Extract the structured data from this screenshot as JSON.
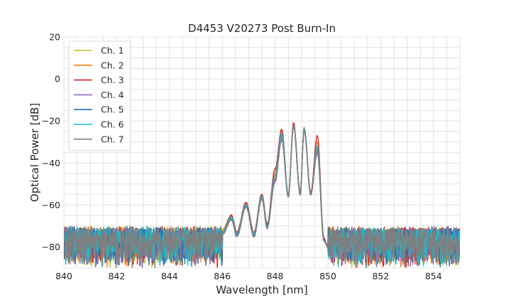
{
  "chart_data": {
    "type": "line",
    "title": "D4453 V20273 Post Burn-In",
    "xlabel": "Wavelength [nm]",
    "ylabel": "Optical Power [dB]",
    "xlim": [
      840,
      855
    ],
    "ylim": [
      -90,
      20
    ],
    "xticks": [
      840,
      842,
      844,
      846,
      848,
      850,
      852,
      854
    ],
    "yticks": [
      20,
      0,
      -20,
      -40,
      -60,
      -80
    ],
    "xtick_labels": [
      "840",
      "842",
      "844",
      "846",
      "848",
      "850",
      "852",
      "854"
    ],
    "ytick_labels": [
      "20",
      "0",
      "−20",
      "−40",
      "−60",
      "−80"
    ],
    "grid": true,
    "legend_position": "top-left",
    "noise_floor": {
      "x_range_left": [
        840,
        846
      ],
      "x_range_right": [
        850.1,
        855
      ],
      "mean_db": -80,
      "peak_db": -71,
      "trough_db": -90
    },
    "spectrum_keypoints_x": [
      846.0,
      846.35,
      846.55,
      846.9,
      847.2,
      847.5,
      847.7,
      848.0,
      848.25,
      848.5,
      848.7,
      848.95,
      849.1,
      849.35,
      849.6,
      849.85,
      850.0
    ],
    "series": [
      {
        "name": "Ch. 1",
        "color": "#bcbd22",
        "offset": 0.0,
        "y": [
          -73,
          -66,
          -74,
          -60,
          -74,
          -56,
          -70,
          -47,
          -26,
          -56,
          -22,
          -55,
          -23,
          -55,
          -33,
          -77,
          -80
        ]
      },
      {
        "name": "Ch. 2",
        "color": "#ff7f0e",
        "offset": 0.6,
        "y": [
          -72,
          -65,
          -73,
          -59,
          -73,
          -55,
          -69,
          -45,
          -25,
          -55,
          -21,
          -54,
          -23,
          -54,
          -30,
          -76,
          -80
        ]
      },
      {
        "name": "Ch. 3",
        "color": "#d62728",
        "offset": 1.2,
        "y": [
          -73,
          -65,
          -73,
          -59,
          -73,
          -55,
          -69,
          -43,
          -24,
          -55,
          -21,
          -54,
          -24,
          -54,
          -27,
          -76,
          -80
        ]
      },
      {
        "name": "Ch. 4",
        "color": "#9467bd",
        "offset": 1.8,
        "y": [
          -74,
          -67,
          -75,
          -61,
          -75,
          -57,
          -71,
          -49,
          -29,
          -56,
          -23,
          -55,
          -24,
          -55,
          -34,
          -77,
          -80
        ]
      },
      {
        "name": "Ch. 5",
        "color": "#1f77b4",
        "offset": 2.4,
        "y": [
          -74,
          -66,
          -74,
          -60,
          -74,
          -56,
          -70,
          -48,
          -27,
          -56,
          -22,
          -55,
          -24,
          -55,
          -35,
          -77,
          -80
        ]
      },
      {
        "name": "Ch. 6",
        "color": "#17becf",
        "offset": 3.0,
        "y": [
          -73,
          -66,
          -74,
          -60,
          -74,
          -56,
          -70,
          -46,
          -26,
          -55,
          -22,
          -55,
          -24,
          -55,
          -32,
          -77,
          -80
        ]
      },
      {
        "name": "Ch. 7",
        "color": "#7f7f7f",
        "offset": 3.6,
        "y": [
          -74,
          -67,
          -75,
          -61,
          -75,
          -57,
          -71,
          -48,
          -28,
          -56,
          -22,
          -55,
          -25,
          -55,
          -34,
          -77,
          -80
        ]
      }
    ]
  }
}
